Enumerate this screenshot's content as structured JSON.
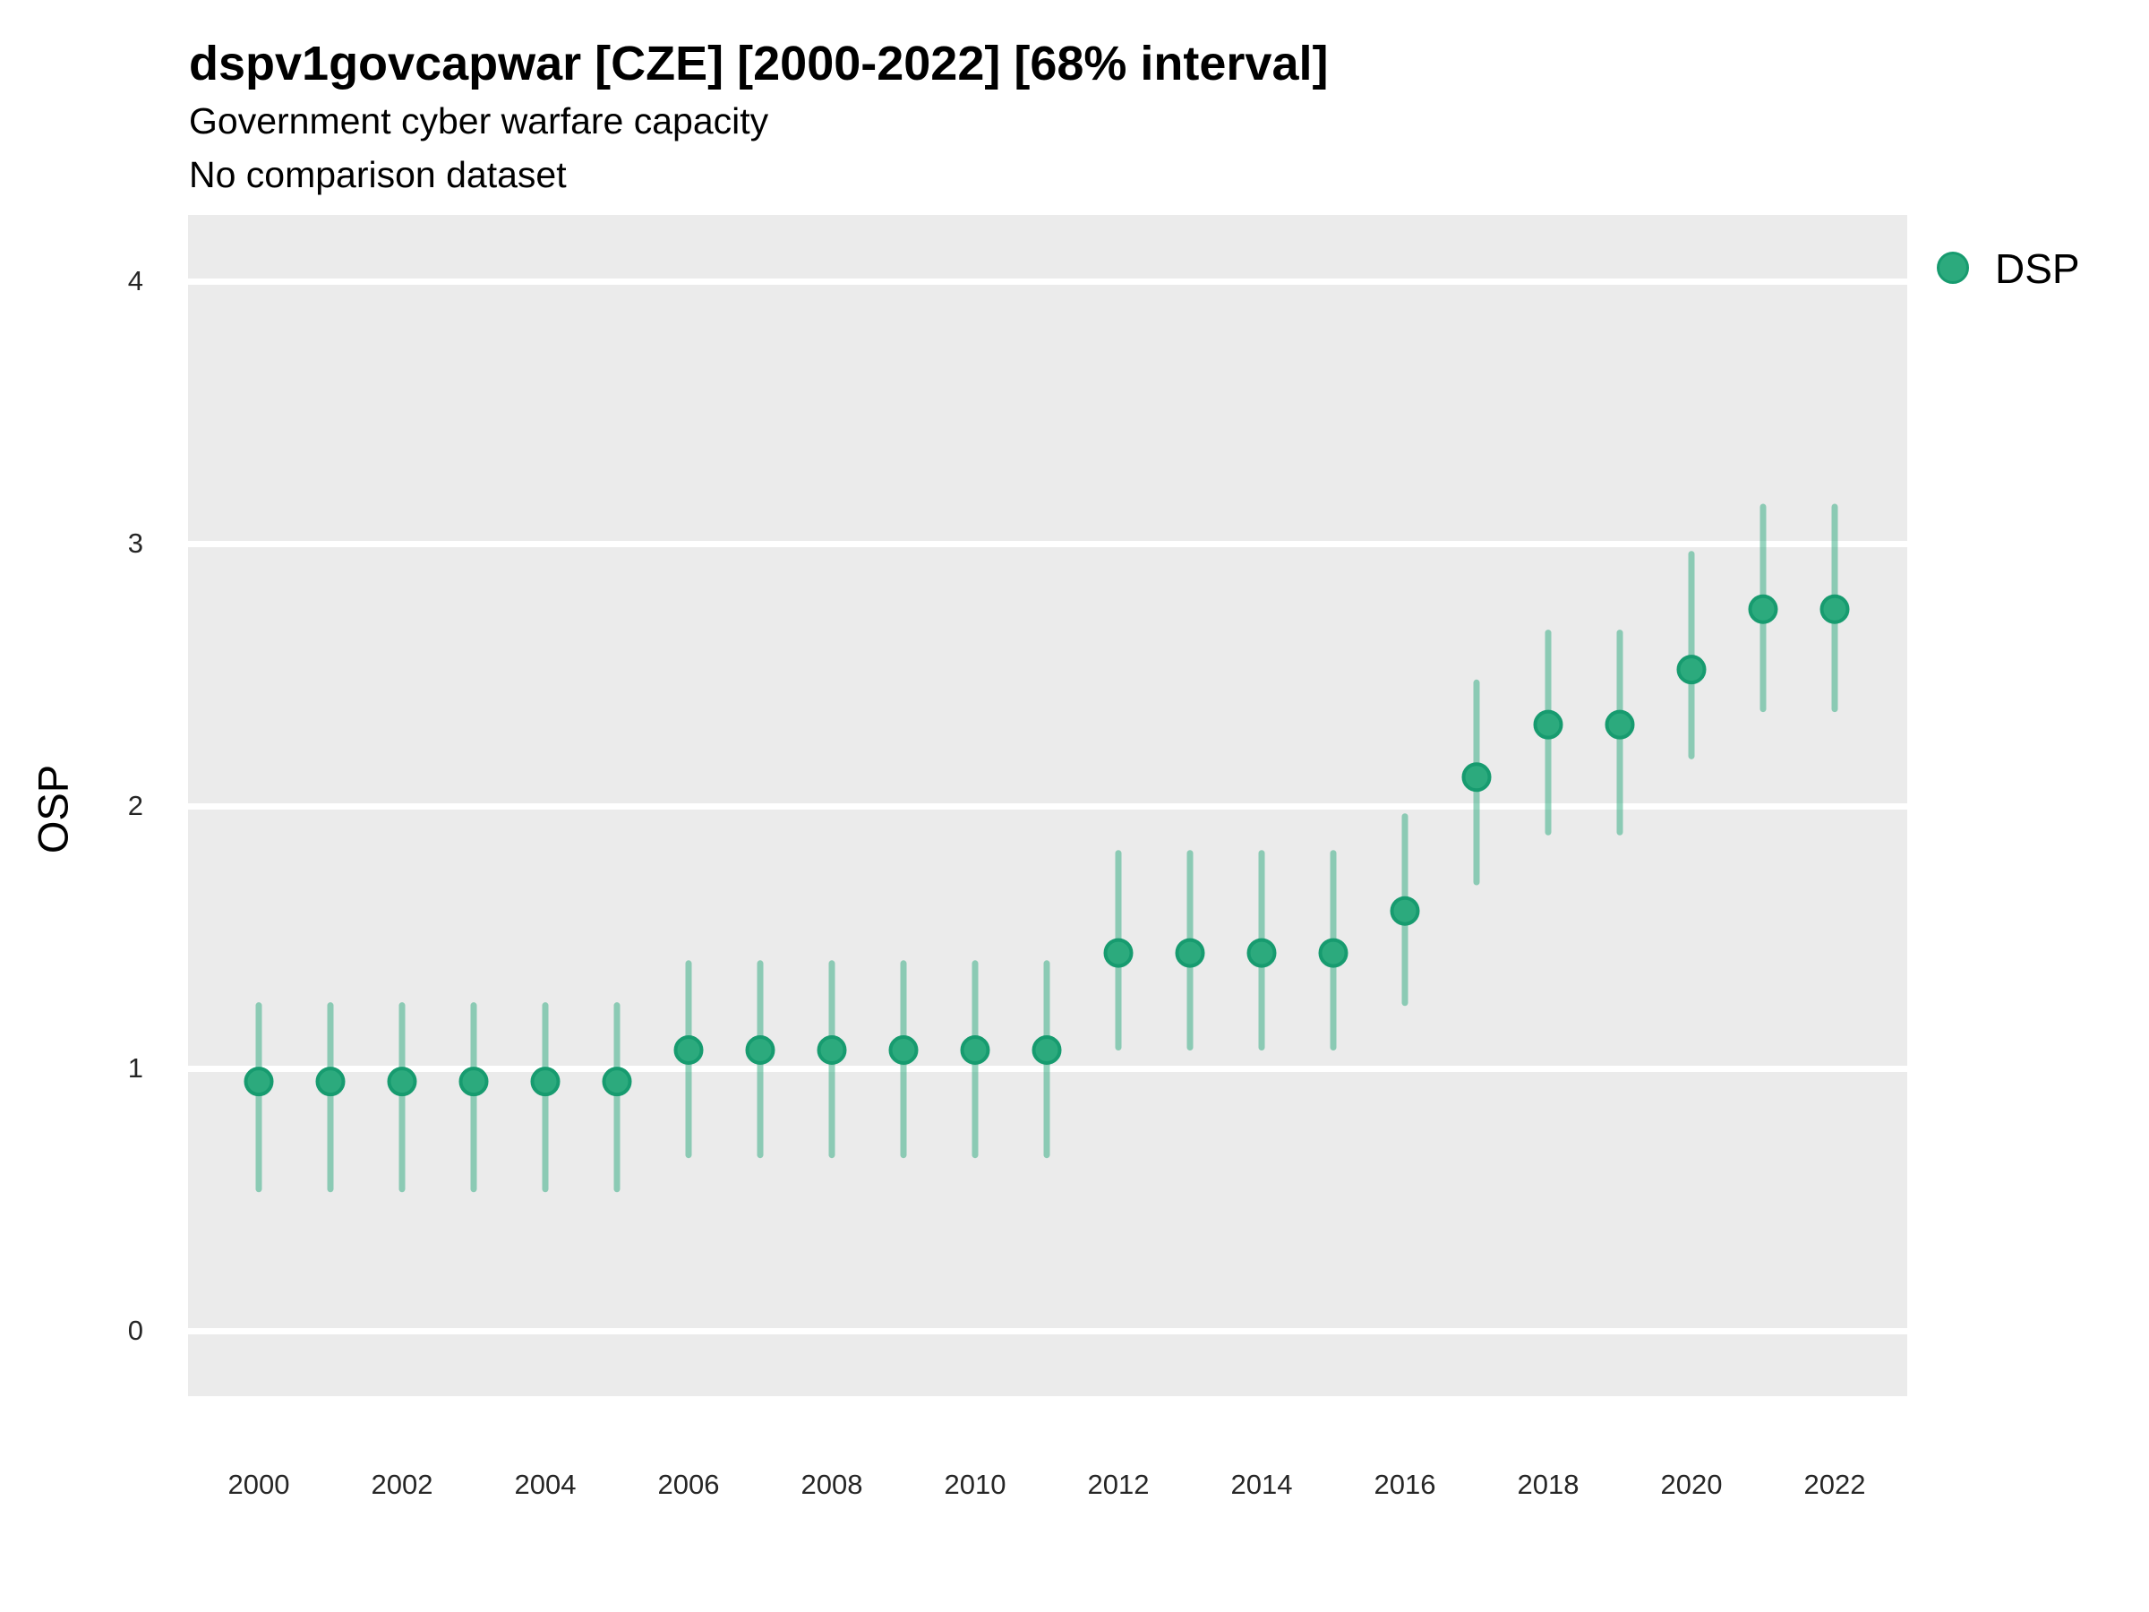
{
  "header": {
    "title": "dspv1govcapwar [CZE] [2000-2022] [68% interval]",
    "subtitle": "Government cyber warfare capacity",
    "note": "No comparison dataset"
  },
  "axes": {
    "y_label": "OSP",
    "y_ticks": [
      0,
      1,
      2,
      3,
      4
    ],
    "x_ticks": [
      2000,
      2002,
      2004,
      2006,
      2008,
      2010,
      2012,
      2014,
      2016,
      2018,
      2020,
      2022
    ]
  },
  "legend": {
    "label": "DSP",
    "dot_color": "#2CAA7D"
  },
  "colors": {
    "point_fill": "#2CAA7D",
    "point_stroke": "#179B6F",
    "interval_bar": "rgba(44,170,125,0.5)",
    "interval_bar_hex": "#8CCBB4",
    "panel_background": "#EBEBEB",
    "gridline": "#FFFFFF",
    "title_text": "#000000",
    "tick_text": "#262626"
  },
  "chart_data": {
    "type": "scatter",
    "title": "dspv1govcapwar [CZE] [2000-2022] [68% interval]",
    "subtitle": "Government cyber warfare capacity",
    "note": "No comparison dataset",
    "xlabel": "",
    "ylabel": "OSP",
    "interval_label": "68% interval",
    "legend_position": "top-right",
    "grid": "horizontal-major-only",
    "ylim": [
      -0.25,
      4.25
    ],
    "xlim": [
      1999,
      2023
    ],
    "y_ticks": [
      0,
      1,
      2,
      3,
      4
    ],
    "x_ticks": [
      2000,
      2002,
      2004,
      2006,
      2008,
      2010,
      2012,
      2014,
      2016,
      2018,
      2020,
      2022
    ],
    "series": [
      {
        "name": "DSP",
        "years": [
          2000,
          2001,
          2002,
          2003,
          2004,
          2005,
          2006,
          2007,
          2008,
          2009,
          2010,
          2011,
          2012,
          2013,
          2014,
          2015,
          2016,
          2017,
          2018,
          2019,
          2020,
          2021,
          2022
        ],
        "estimate": [
          0.95,
          0.95,
          0.95,
          0.95,
          0.95,
          0.95,
          1.07,
          1.07,
          1.07,
          1.07,
          1.07,
          1.07,
          1.44,
          1.44,
          1.44,
          1.44,
          1.6,
          2.11,
          2.31,
          2.31,
          2.52,
          2.75,
          2.75
        ],
        "lower": [
          0.54,
          0.54,
          0.54,
          0.54,
          0.54,
          0.54,
          0.67,
          0.67,
          0.67,
          0.67,
          0.67,
          0.67,
          1.08,
          1.08,
          1.08,
          1.08,
          1.25,
          1.71,
          1.9,
          1.9,
          2.19,
          2.37,
          2.37
        ],
        "upper": [
          1.24,
          1.24,
          1.24,
          1.24,
          1.24,
          1.24,
          1.4,
          1.4,
          1.4,
          1.4,
          1.4,
          1.4,
          1.82,
          1.82,
          1.82,
          1.82,
          1.96,
          2.47,
          2.66,
          2.66,
          2.96,
          3.14,
          3.14
        ]
      }
    ]
  }
}
